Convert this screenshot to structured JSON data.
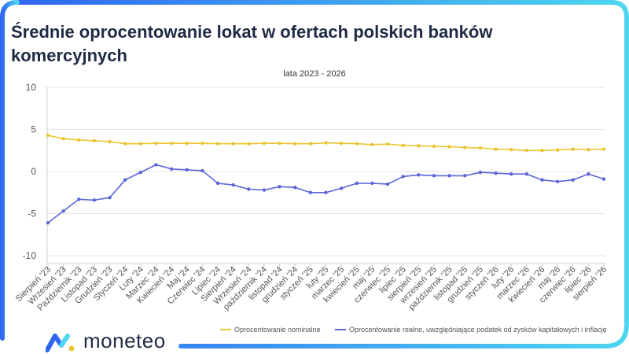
{
  "title": "Średnie oprocentowanie lokat w ofertach polskich banków komercyjnych",
  "subtitle": "lata 2023 - 2026",
  "brand": {
    "name": "moneteo",
    "logo_icon": "moneteo-logo-icon"
  },
  "colors": {
    "nominal": "#e9c531",
    "real": "#5a66d8",
    "frame_left": "#2f66f0",
    "frame_right": "#4ed6f0"
  },
  "chart_data": {
    "type": "line",
    "categories": [
      "Sierpień '23",
      "Wrzesień '23",
      "Październik '23",
      "Listopad '23",
      "Grudzień '23",
      "Styczeń '24",
      "Luty '24",
      "Marzec '24",
      "Kwiecień '24",
      "Maj '24",
      "Czerwiec '24",
      "Lipiec '24",
      "Sierpień '24",
      "Wrzesień '24",
      "październik '24",
      "listopad '24",
      "grudzień '24",
      "styczeń '25",
      "luty '25",
      "marzec '25",
      "kwiecień '25",
      "maj '25",
      "czerwiec '25",
      "lipiec '25",
      "sierpień '25",
      "wrzesień '25",
      "październik '25",
      "listopad '25",
      "grudzień '25",
      "styczeń '26",
      "luty '26",
      "marzec '26",
      "kwiecień '26",
      "maj '26",
      "czerwiec '26",
      "lipiec '26",
      "sierpień '26"
    ],
    "series": [
      {
        "name": "Oprocentowanie nominalne",
        "values": [
          4.3,
          3.9,
          3.75,
          3.65,
          3.55,
          3.3,
          3.3,
          3.35,
          3.35,
          3.35,
          3.35,
          3.3,
          3.3,
          3.3,
          3.35,
          3.35,
          3.3,
          3.3,
          3.4,
          3.35,
          3.3,
          3.2,
          3.25,
          3.1,
          3.05,
          3.0,
          2.95,
          2.85,
          2.8,
          2.65,
          2.6,
          2.5,
          2.5,
          2.55,
          2.65,
          2.6,
          2.65
        ]
      },
      {
        "name": "Oprocentowanie realne, uwzględniające podatek od zysków kapitałowych i inflację",
        "values": [
          -6.1,
          -4.7,
          -3.3,
          -3.4,
          -3.1,
          -1.0,
          -0.1,
          0.8,
          0.3,
          0.2,
          0.1,
          -1.4,
          -1.6,
          -2.1,
          -2.2,
          -1.8,
          -1.9,
          -2.5,
          -2.5,
          -2.0,
          -1.4,
          -1.4,
          -1.5,
          -0.6,
          -0.4,
          -0.5,
          -0.5,
          -0.5,
          -0.1,
          -0.2,
          -0.3,
          -0.3,
          -1.0,
          -1.2,
          -1.0,
          -0.3,
          -0.9
        ]
      }
    ],
    "ylim": [
      -10,
      10
    ],
    "yticks": [
      -10,
      -5,
      0,
      5,
      10
    ],
    "grid": true,
    "legend": "bottom-right"
  }
}
